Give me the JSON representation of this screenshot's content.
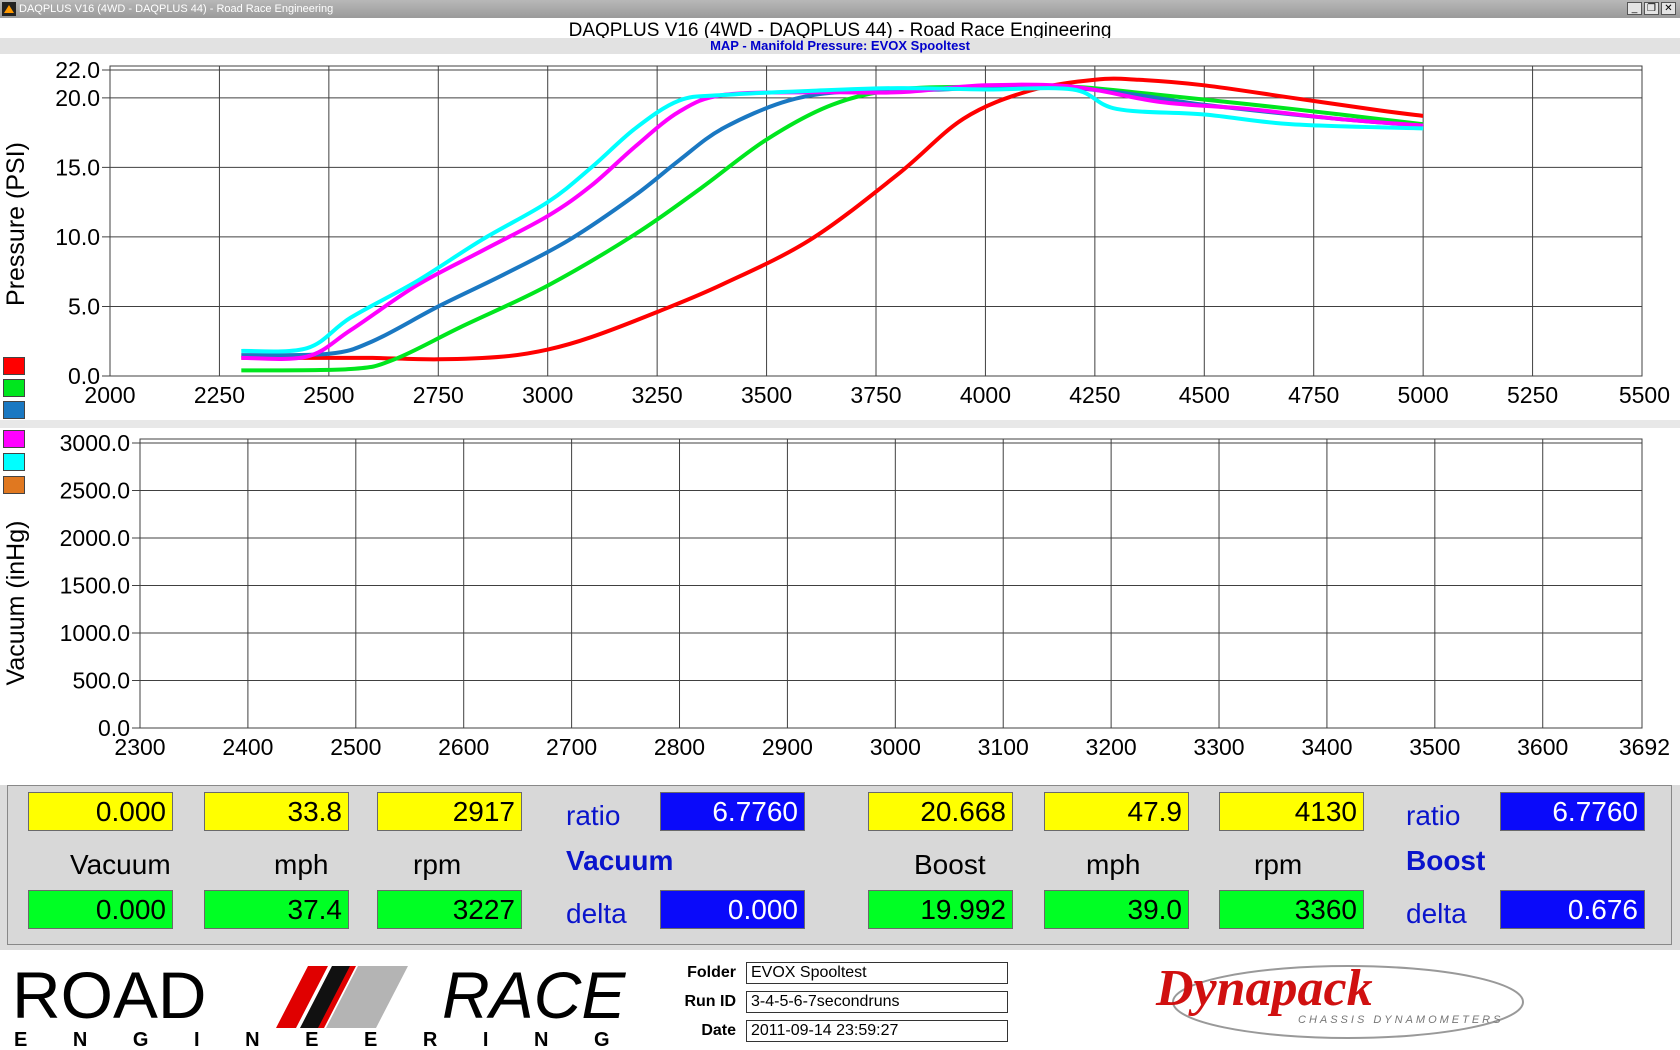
{
  "window": {
    "title": "DAQPLUS V16 (4WD - DAQPLUS 44) - Road Race Engineering",
    "minimize": "_",
    "restore": "❐",
    "close": "✕"
  },
  "header": {
    "title": "DAQPLUS V16 (4WD - DAQPLUS 44) - Road Race Engineering",
    "subtitle": "MAP - Manifold Pressure: EVOX Spooltest"
  },
  "legend_colors": [
    "#ff0000",
    "#00e61e",
    "#1a78c2",
    "#ff00ff",
    "#00ffff",
    "#e07820"
  ],
  "chart_data": [
    {
      "type": "line",
      "title": "MAP - Manifold Pressure: EVOX Spooltest",
      "xlabel": "",
      "ylabel": "Pressure (PSI)",
      "xlim": [
        2000,
        5500
      ],
      "ylim": [
        0,
        22
      ],
      "x_ticks": [
        "2000",
        "2250",
        "2500",
        "2750",
        "3000",
        "3250",
        "3500",
        "3750",
        "4000",
        "4250",
        "4500",
        "4750",
        "5000",
        "5250",
        "5500"
      ],
      "y_ticks": [
        "0.0",
        "5.0",
        "10.0",
        "15.0",
        "20.0",
        "22.0"
      ],
      "grid": true,
      "series": [
        {
          "color": "#ff0000",
          "x": [
            2300,
            2500,
            2600,
            2750,
            2900,
            3000,
            3100,
            3250,
            3400,
            3600,
            3800,
            3950,
            4100,
            4250,
            4350,
            4500,
            4700,
            4900,
            5000
          ],
          "y": [
            1.3,
            1.3,
            1.3,
            1.2,
            1.4,
            1.9,
            2.8,
            4.6,
            6.6,
            9.8,
            14.5,
            18.5,
            20.5,
            21.3,
            21.3,
            20.9,
            20.0,
            19.1,
            18.7
          ]
        },
        {
          "color": "#00e61e",
          "x": [
            2300,
            2550,
            2650,
            2800,
            3000,
            3200,
            3350,
            3500,
            3650,
            3800,
            4000,
            4200,
            4400,
            4700,
            5000
          ],
          "y": [
            0.4,
            0.5,
            1.2,
            3.5,
            6.5,
            10.2,
            13.5,
            17.0,
            19.5,
            20.6,
            20.8,
            20.8,
            20.2,
            19.2,
            18.1
          ]
        },
        {
          "color": "#1a78c2",
          "x": [
            2300,
            2500,
            2600,
            2750,
            2900,
            3050,
            3200,
            3300,
            3400,
            3550,
            3700,
            3900,
            4100,
            4300,
            4500,
            4800,
            5000
          ],
          "y": [
            1.5,
            1.6,
            2.5,
            5.0,
            7.3,
            9.8,
            13.0,
            15.5,
            17.8,
            19.8,
            20.5,
            20.6,
            20.9,
            20.4,
            19.5,
            18.5,
            18.0
          ]
        },
        {
          "color": "#ff00ff",
          "x": [
            2300,
            2450,
            2550,
            2700,
            2850,
            3000,
            3100,
            3200,
            3300,
            3400,
            3600,
            3800,
            4000,
            4200,
            4400,
            4600,
            4800,
            5000
          ],
          "y": [
            1.3,
            1.4,
            3.3,
            6.5,
            9.0,
            11.5,
            13.7,
            16.5,
            19.0,
            20.2,
            20.4,
            20.4,
            20.9,
            20.8,
            19.7,
            19.2,
            18.5,
            18.0
          ]
        },
        {
          "color": "#00ffff",
          "x": [
            2300,
            2450,
            2550,
            2700,
            2850,
            3000,
            3100,
            3200,
            3300,
            3400,
            3600,
            3800,
            4000,
            4200,
            4300,
            4500,
            4700,
            5000
          ],
          "y": [
            1.8,
            2.0,
            4.2,
            6.8,
            9.8,
            12.5,
            15.0,
            17.8,
            19.8,
            20.2,
            20.5,
            20.7,
            20.6,
            20.6,
            19.2,
            18.8,
            18.1,
            17.8
          ]
        }
      ]
    },
    {
      "type": "line",
      "xlabel": "",
      "ylabel": "Vacuum (inHg)",
      "xlim": [
        2300,
        3692
      ],
      "ylim": [
        0,
        3000
      ],
      "x_ticks": [
        "2300",
        "2400",
        "2500",
        "2600",
        "2700",
        "2800",
        "2900",
        "3000",
        "3100",
        "3200",
        "3300",
        "3400",
        "3500",
        "3600",
        "3692"
      ],
      "y_ticks": [
        "0.0",
        "500.0",
        "1000.0",
        "1500.0",
        "2000.0",
        "2500.0",
        "3000.0"
      ],
      "grid": true,
      "series": []
    }
  ],
  "readout": {
    "vacuum": {
      "top": [
        "0.000",
        "33.8",
        "2917"
      ],
      "bottom": [
        "0.000",
        "37.4",
        "3227"
      ],
      "labels": [
        "Vacuum",
        "mph",
        "rpm"
      ],
      "ratio_label": "ratio",
      "ratio_value": "6.7760",
      "title": "Vacuum",
      "delta_label": "delta",
      "delta_value": "0.000"
    },
    "boost": {
      "top": [
        "20.668",
        "47.9",
        "4130"
      ],
      "bottom": [
        "19.992",
        "39.0",
        "3360"
      ],
      "labels": [
        "Boost",
        "mph",
        "rpm"
      ],
      "ratio_label": "ratio",
      "ratio_value": "6.7760",
      "title": "Boost",
      "delta_label": "delta",
      "delta_value": "0.676"
    }
  },
  "footer": {
    "folder_label": "Folder",
    "folder_value": "EVOX Spooltest",
    "runid_label": "Run ID",
    "runid_value": "3-4-5-6-7secondruns",
    "date_label": "Date",
    "date_value": "2011-09-14 23:59:27",
    "logo_left_1": "ROAD",
    "logo_left_2": "RACE",
    "logo_left_sub": "E N G I N E E R I N G",
    "logo_right_1": "Dynapack",
    "logo_right_sub": "CHASSIS DYNAMOMETERS"
  }
}
